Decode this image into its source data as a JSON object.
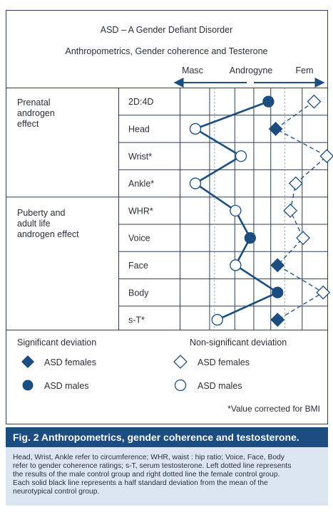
{
  "title_line1": "ASD – A Gender Defiant Disorder",
  "title_line2": "Anthropometrics, Gender coherence and Testerone",
  "axis": {
    "masc": "Masc",
    "androgyne": "Androgyne",
    "fem": "Fem"
  },
  "groups": [
    {
      "label_lines": [
        "Prenatal",
        "androgen",
        "effect"
      ]
    },
    {
      "label_lines": [
        "Puberty and",
        "adult life",
        "androgen effect"
      ]
    }
  ],
  "rows": [
    "2D:4D",
    "Head",
    "Wrist*",
    "Ankle*",
    "WHR*",
    "Voice",
    "Face",
    "Body",
    "s-T*"
  ],
  "chart_data": {
    "type": "scatter",
    "x_unit": "half standard deviations from neurotypical control mean (Masc to Fem)",
    "males": [
      {
        "row": "2D:4D",
        "x": 4,
        "significant": true
      },
      {
        "row": "Head",
        "x": 0,
        "significant": false
      },
      {
        "row": "Wrist*",
        "x": 2.5,
        "significant": false
      },
      {
        "row": "Ankle*",
        "x": 0,
        "significant": false
      },
      {
        "row": "WHR*",
        "x": 2.2,
        "significant": false
      },
      {
        "row": "Voice",
        "x": 3,
        "significant": true
      },
      {
        "row": "Face",
        "x": 2.2,
        "significant": false
      },
      {
        "row": "Body",
        "x": 4.5,
        "significant": true
      },
      {
        "row": "s-T*",
        "x": 1.2,
        "significant": false
      }
    ],
    "females": [
      {
        "row": "2D:4D",
        "x": 6.5,
        "significant": false
      },
      {
        "row": "Head",
        "x": 4.4,
        "significant": true
      },
      {
        "row": "Wrist*",
        "x": 7.2,
        "significant": false
      },
      {
        "row": "Ankle*",
        "x": 5.5,
        "significant": false
      },
      {
        "row": "WHR*",
        "x": 5.2,
        "significant": false
      },
      {
        "row": "Voice",
        "x": 5.9,
        "significant": false
      },
      {
        "row": "Face",
        "x": 4.5,
        "significant": true
      },
      {
        "row": "Body",
        "x": 7,
        "significant": false
      },
      {
        "row": "s-T*",
        "x": 4.5,
        "significant": true
      }
    ]
  },
  "legend": {
    "sig_heading": "Significant deviation",
    "nonsig_heading": "Non-significant deviation",
    "asd_females": "ASD females",
    "asd_males": "ASD males",
    "footnote": "*Value corrected for BMI"
  },
  "caption": {
    "title": "Fig. 2   Anthropometrics, gender coherence and testosterone.",
    "lines": [
      "Head, Wrist, Ankle refer to circumference; WHR, waist : hip ratio; Voice, Face, Body",
      "refer to gender coherence ratings; s-T, serum testosterone. Left dotted line represents",
      "the results of the male control group and right dotted line the female control group.",
      "Each solid black line represents a half standard deviation from the mean of the",
      "neurotypical control group."
    ]
  },
  "colors": {
    "navy": "#1b4d80",
    "grid": "#2d3e5a",
    "caption_bg": "#1b4d80",
    "caption_body": "#dce6f1"
  }
}
